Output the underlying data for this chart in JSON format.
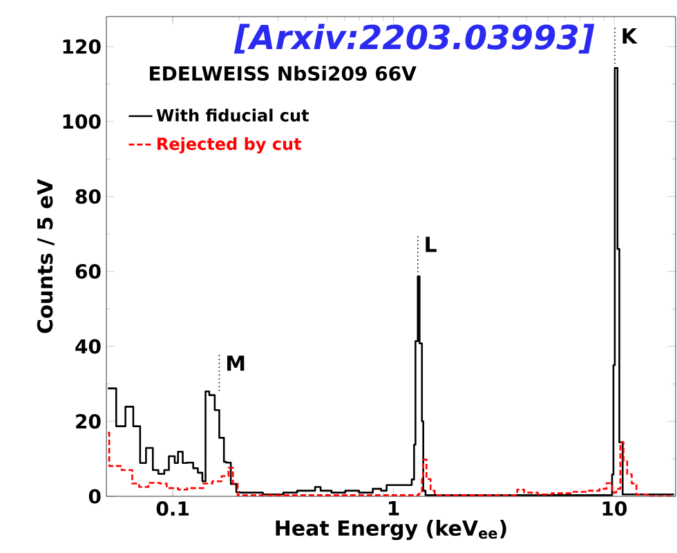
{
  "chart_data": {
    "type": "step",
    "xlabel": "Heat Energy (keV$_{ee}$)",
    "ylabel": "Counts / 5 eV",
    "annotations": [
      "[Arxiv:2203.03993]",
      "EDELWEISS  NbSi209  66V",
      {
        "text": "M",
        "x": 0.1624,
        "y": 27
      },
      {
        "text": "L",
        "x": 1.289,
        "y": 58.7
      },
      {
        "text": "K",
        "x": 10.07,
        "y": 114.3
      }
    ],
    "log": "x",
    "xlim": [
      0.05,
      19
    ],
    "ylim": [
      0,
      128
    ],
    "xticks": [
      0.1,
      1,
      10
    ],
    "yticks": [
      0,
      20,
      40,
      60,
      80,
      100,
      120
    ],
    "legend": "top left",
    "grid": false,
    "series": [
      {
        "name": "With fiducial cut",
        "color": "#000000",
        "line_style": "solid",
        "x": [
          0.0508,
          0.0554,
          0.061,
          0.0662,
          0.0711,
          0.0756,
          0.0812,
          0.086,
          0.0915,
          0.096,
          0.102,
          0.1056,
          0.1109,
          0.1162,
          0.1237,
          0.1299,
          0.1361,
          0.1407,
          0.1463,
          0.1549,
          0.1624,
          0.1705,
          0.1745,
          0.1832,
          0.194,
          0.2014,
          0.256,
          0.317,
          0.366,
          0.4415,
          0.4675,
          0.524,
          0.605,
          0.698,
          0.806,
          0.879,
          0.931,
          1.21,
          1.24,
          1.258,
          1.289,
          1.313,
          1.346,
          1.365,
          1.397,
          9.79,
          9.93,
          10.07,
          10.36,
          10.56,
          10.93,
          18.7
        ],
        "values": [
          28.8,
          18.7,
          23.9,
          18.7,
          8.9,
          12.9,
          7,
          6,
          7,
          10.7,
          8.9,
          11.9,
          8.9,
          9,
          7.5,
          6.3,
          4,
          28,
          27,
          23,
          15.6,
          9.2,
          9,
          3.3,
          1.1,
          1,
          0.5,
          1,
          1.5,
          2.5,
          1.5,
          1,
          1.5,
          1,
          2,
          1.5,
          3,
          4.5,
          13.8,
          41.4,
          58.7,
          40.8,
          20,
          1.5,
          0.3,
          5.8,
          35,
          114.3,
          66,
          14.4,
          0.5,
          0.5
        ]
      },
      {
        "name": "Rejected by cut",
        "color": "#ff0000",
        "line_style": "dashed",
        "x": [
          0.0508,
          0.0515,
          0.0586,
          0.0655,
          0.0704,
          0.0775,
          0.0873,
          0.0938,
          0.1056,
          0.1162,
          0.1375,
          0.1511,
          0.1664,
          0.1788,
          0.1874,
          0.1968,
          1.3,
          1.346,
          1.365,
          1.411,
          1.473,
          1.538,
          3.64,
          3.91,
          4.51,
          5.21,
          6.46,
          7.45,
          8.6,
          9.24,
          9.79,
          10.22,
          10.67,
          11.03,
          11.46,
          12.02,
          12.62,
          14.21,
          18.7
        ],
        "values": [
          17,
          8.1,
          7,
          3.4,
          2.5,
          3.6,
          3.4,
          2.2,
          1.8,
          2.2,
          3.4,
          4,
          5.4,
          7.6,
          3.4,
          0.3,
          0.7,
          4.6,
          9.8,
          4.6,
          1.5,
          0.3,
          1.8,
          1,
          0.5,
          0.8,
          1.2,
          1.5,
          2,
          3.5,
          1,
          2,
          14.4,
          9.6,
          5.9,
          3.4,
          0.5,
          0,
          0
        ]
      }
    ]
  }
}
